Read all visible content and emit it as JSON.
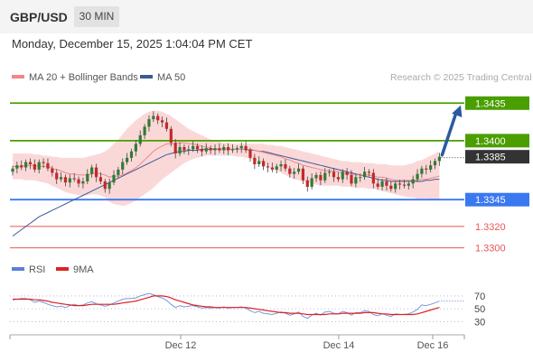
{
  "header": {
    "symbol": "GBP/USD",
    "timeframe": "30 MIN"
  },
  "datetime": "Monday, December 15, 2025 1:04:04 PM CET",
  "legend": {
    "bollinger_label": "MA 20 + Bollinger Bands",
    "ma50_label": "MA 50",
    "credit": "Research © 2025 Trading Central"
  },
  "rsi_legend": {
    "rsi_label": "RSI",
    "ma_label": "9MA"
  },
  "colors": {
    "resistance": "#4a9e00",
    "support": "#3a78f0",
    "lower_target": "#e85555",
    "ma20_band": "#f9c8c8",
    "ma20_line": "#e88a8a",
    "ma50_line": "#3a5a9a",
    "candle_up": "#2e7d32",
    "candle_down": "#c62828",
    "price_tag": "#333333",
    "arrow": "#2b5aa0",
    "rsi": "#7799dd",
    "rsi_ma": "#dd2222"
  },
  "chart_data": [
    {
      "type": "candlestick",
      "title": "GBP/USD",
      "timeframe": "30 MIN",
      "ylim": [
        1.3293,
        1.3447
      ],
      "x_ticks": [
        "Dec 12",
        "Dec 14",
        "Dec 16"
      ],
      "levels": [
        {
          "label": "1.3435",
          "value": 1.3435,
          "kind": "resistance"
        },
        {
          "label": "1.3400",
          "value": 1.34,
          "kind": "resistance"
        },
        {
          "label": "1.3345",
          "value": 1.3345,
          "kind": "support"
        },
        {
          "label": "1.3320",
          "value": 1.332,
          "kind": "lower_target"
        },
        {
          "label": "1.3300",
          "value": 1.33,
          "kind": "lower_target"
        }
      ],
      "last_price": {
        "label": "1.3385",
        "value": 1.3385
      },
      "projection": {
        "from": 1.3385,
        "to": 1.3433,
        "direction": "up"
      },
      "closes": [
        1.3374,
        1.3377,
        1.3375,
        1.338,
        1.3378,
        1.3373,
        1.338,
        1.3379,
        1.3374,
        1.337,
        1.3364,
        1.3366,
        1.3361,
        1.3365,
        1.3364,
        1.336,
        1.3362,
        1.3369,
        1.3375,
        1.3366,
        1.3362,
        1.3355,
        1.3361,
        1.3368,
        1.3373,
        1.338,
        1.3384,
        1.339,
        1.3397,
        1.3405,
        1.3413,
        1.342,
        1.3423,
        1.3419,
        1.3417,
        1.3411,
        1.3398,
        1.3388,
        1.3394,
        1.3391,
        1.3392,
        1.3395,
        1.3392,
        1.339,
        1.3393,
        1.3391,
        1.3393,
        1.3391,
        1.3394,
        1.3391,
        1.3392,
        1.3393,
        1.3395,
        1.3391,
        1.3384,
        1.3378,
        1.3381,
        1.3376,
        1.3375,
        1.3373,
        1.3376,
        1.3378,
        1.3374,
        1.3369,
        1.3371,
        1.3374,
        1.3363,
        1.3357,
        1.3365,
        1.3368,
        1.3363,
        1.337,
        1.3371,
        1.3366,
        1.3364,
        1.3371,
        1.3368,
        1.336,
        1.3366,
        1.3366,
        1.3371,
        1.337,
        1.336,
        1.3357,
        1.3362,
        1.3358,
        1.3355,
        1.336,
        1.3359,
        1.3358,
        1.336,
        1.3364,
        1.3369,
        1.3374,
        1.3373,
        1.3377,
        1.3381,
        1.3385
      ],
      "ma20": [
        1.3376,
        1.3376,
        1.3376,
        1.3377,
        1.3377,
        1.3377,
        1.3376,
        1.3376,
        1.3376,
        1.3374,
        1.3373,
        1.3372,
        1.337,
        1.3369,
        1.3369,
        1.3368,
        1.3368,
        1.3368,
        1.3369,
        1.337,
        1.3369,
        1.3368,
        1.3366,
        1.3367,
        1.3367,
        1.3368,
        1.337,
        1.3372,
        1.3375,
        1.3378,
        1.3382,
        1.3386,
        1.339,
        1.3393,
        1.3395,
        1.3397,
        1.3397,
        1.3397,
        1.3398,
        1.3398,
        1.3397,
        1.3397,
        1.3396,
        1.3395,
        1.3394,
        1.3393,
        1.3392,
        1.3392,
        1.3392,
        1.3392,
        1.3392,
        1.3392,
        1.3392,
        1.3392,
        1.3392,
        1.3391,
        1.339,
        1.3389,
        1.3388,
        1.3387,
        1.3386,
        1.3385,
        1.3383,
        1.3382,
        1.338,
        1.3379,
        1.3377,
        1.3376,
        1.3375,
        1.3374,
        1.3373,
        1.3372,
        1.3372,
        1.3372,
        1.3371,
        1.337,
        1.3369,
        1.3369,
        1.3368,
        1.3368,
        1.3368,
        1.3368,
        1.3367,
        1.3366,
        1.3366,
        1.3365,
        1.3364,
        1.3363,
        1.3363,
        1.3363,
        1.3363,
        1.3363,
        1.3363,
        1.3364,
        1.3364,
        1.3365,
        1.3366,
        1.3367
      ],
      "bb_upper": [
        1.3388,
        1.3388,
        1.3388,
        1.3388,
        1.3388,
        1.3387,
        1.3387,
        1.3386,
        1.3386,
        1.3385,
        1.3385,
        1.3384,
        1.3384,
        1.3384,
        1.3384,
        1.3384,
        1.3384,
        1.3385,
        1.3386,
        1.3387,
        1.3388,
        1.339,
        1.3393,
        1.3397,
        1.3401,
        1.3406,
        1.3411,
        1.3415,
        1.3419,
        1.3422,
        1.3425,
        1.3427,
        1.3428,
        1.3428,
        1.3427,
        1.3425,
        1.3423,
        1.342,
        1.3417,
        1.3414,
        1.3411,
        1.3409,
        1.3407,
        1.3405,
        1.3403,
        1.3401,
        1.34,
        1.3399,
        1.3398,
        1.3398,
        1.3397,
        1.3397,
        1.3397,
        1.3397,
        1.3397,
        1.3397,
        1.3397,
        1.3397,
        1.3396,
        1.3396,
        1.3395,
        1.3395,
        1.3394,
        1.3393,
        1.3392,
        1.3391,
        1.339,
        1.3389,
        1.3388,
        1.3387,
        1.3386,
        1.3385,
        1.3384,
        1.3383,
        1.3382,
        1.3381,
        1.3381,
        1.338,
        1.338,
        1.338,
        1.3379,
        1.3379,
        1.3379,
        1.3378,
        1.3378,
        1.3378,
        1.3377,
        1.3377,
        1.3377,
        1.3377,
        1.3378,
        1.3379,
        1.3381,
        1.3382,
        1.3384,
        1.3386,
        1.3388,
        1.339
      ],
      "bb_lower": [
        1.3364,
        1.3364,
        1.3364,
        1.3363,
        1.3363,
        1.3363,
        1.3362,
        1.3361,
        1.336,
        1.3358,
        1.3356,
        1.3354,
        1.3352,
        1.3351,
        1.335,
        1.3349,
        1.3349,
        1.3349,
        1.335,
        1.335,
        1.3349,
        1.3347,
        1.3343,
        1.3341,
        1.334,
        1.3339,
        1.334,
        1.3342,
        1.3344,
        1.3347,
        1.335,
        1.3353,
        1.3356,
        1.336,
        1.3364,
        1.3367,
        1.337,
        1.3373,
        1.3376,
        1.3379,
        1.3381,
        1.3383,
        1.3384,
        1.3385,
        1.3386,
        1.3386,
        1.3386,
        1.3386,
        1.3386,
        1.3386,
        1.3386,
        1.3385,
        1.3385,
        1.3384,
        1.3383,
        1.3382,
        1.338,
        1.3378,
        1.3376,
        1.3374,
        1.3372,
        1.337,
        1.3368,
        1.3366,
        1.3364,
        1.3363,
        1.3362,
        1.3361,
        1.336,
        1.3359,
        1.3358,
        1.3358,
        1.3358,
        1.3358,
        1.3358,
        1.3357,
        1.3357,
        1.3357,
        1.3356,
        1.3356,
        1.3356,
        1.3355,
        1.3355,
        1.3354,
        1.3353,
        1.3352,
        1.3351,
        1.335,
        1.3349,
        1.3348,
        1.3347,
        1.3347,
        1.3346,
        1.3346,
        1.3346,
        1.3345,
        1.3345,
        1.3345
      ],
      "ma50": [
        1.3311,
        1.3314,
        1.3317,
        1.332,
        1.3323,
        1.3326,
        1.3329,
        1.3331,
        1.3333,
        1.3335,
        1.3337,
        1.3339,
        1.3341,
        1.3343,
        1.3345,
        1.3347,
        1.3349,
        1.3351,
        1.3353,
        1.3355,
        1.3357,
        1.3359,
        1.3361,
        1.3363,
        1.3365,
        1.3367,
        1.3369,
        1.3371,
        1.3373,
        1.3375,
        1.3377,
        1.3379,
        1.3381,
        1.3383,
        1.3385,
        1.3387,
        1.3388,
        1.3389,
        1.339,
        1.339,
        1.3391,
        1.3391,
        1.3391,
        1.3392,
        1.3392,
        1.3392,
        1.3392,
        1.3392,
        1.3392,
        1.3392,
        1.3392,
        1.3392,
        1.3392,
        1.3392,
        1.3391,
        1.3391,
        1.339,
        1.339,
        1.3389,
        1.3388,
        1.3387,
        1.3386,
        1.3385,
        1.3384,
        1.3383,
        1.3382,
        1.3381,
        1.338,
        1.3379,
        1.3378,
        1.3377,
        1.3376,
        1.3375,
        1.3374,
        1.3373,
        1.3372,
        1.3371,
        1.337,
        1.3369,
        1.3368,
        1.3367,
        1.3366,
        1.3365,
        1.3364,
        1.3363,
        1.3363,
        1.3362,
        1.3362,
        1.3362,
        1.3362,
        1.3362,
        1.3362,
        1.3362,
        1.3362,
        1.3363,
        1.3363,
        1.3364,
        1.3364
      ]
    },
    {
      "type": "line",
      "title": "RSI",
      "ylim": [
        22,
        84
      ],
      "y_ticks": [
        70,
        50,
        30
      ],
      "series": [
        {
          "name": "RSI",
          "values": [
            64,
            65,
            66,
            66,
            64,
            60,
            62,
            60,
            57,
            55,
            53,
            54,
            52,
            55,
            57,
            55,
            56,
            59,
            61,
            58,
            56,
            54,
            56,
            59,
            62,
            65,
            66,
            66,
            67,
            70,
            72,
            74,
            72,
            69,
            67,
            63,
            57,
            52,
            55,
            53,
            54,
            55,
            53,
            51,
            52,
            51,
            52,
            51,
            53,
            51,
            52,
            52,
            53,
            51,
            47,
            44,
            46,
            43,
            42,
            41,
            43,
            45,
            43,
            40,
            42,
            45,
            38,
            35,
            40,
            43,
            40,
            45,
            46,
            43,
            42,
            46,
            44,
            40,
            44,
            44,
            47,
            46,
            41,
            39,
            42,
            40,
            38,
            42,
            41,
            41,
            42,
            45,
            49,
            56,
            55,
            57,
            59,
            62
          ]
        },
        {
          "name": "9MA",
          "values": [
            65,
            65,
            65,
            65,
            65,
            64,
            64,
            63,
            62,
            60,
            59,
            58,
            57,
            56,
            55,
            55,
            55,
            56,
            57,
            57,
            57,
            57,
            57,
            57,
            58,
            59,
            60,
            61,
            62,
            64,
            66,
            68,
            70,
            70,
            70,
            69,
            67,
            64,
            62,
            60,
            58,
            56,
            55,
            54,
            53,
            53,
            52,
            52,
            52,
            52,
            52,
            52,
            52,
            52,
            51,
            50,
            49,
            48,
            47,
            46,
            45,
            44,
            44,
            43,
            43,
            43,
            42,
            41,
            41,
            41,
            41,
            41,
            42,
            42,
            42,
            43,
            43,
            43,
            43,
            43,
            44,
            44,
            44,
            43,
            42,
            42,
            41,
            41,
            41,
            41,
            41,
            41,
            42,
            44,
            46,
            48,
            50,
            52
          ]
        }
      ]
    }
  ]
}
